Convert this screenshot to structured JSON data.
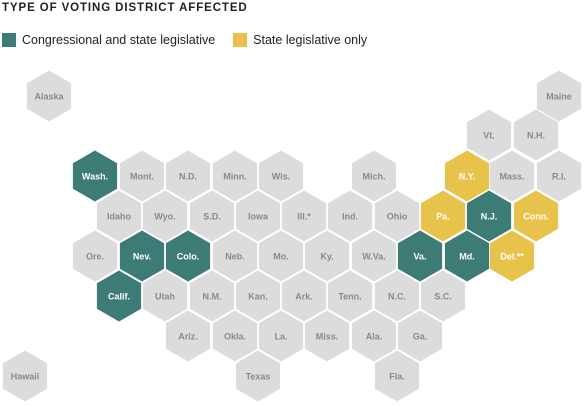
{
  "title": "TYPE OF VOTING DISTRICT AFFECTED",
  "legend": {
    "items": [
      {
        "label": "Congressional and state legislative",
        "color": "#3d7c76"
      },
      {
        "label": "State legislative only",
        "color": "#e8c34c"
      }
    ]
  },
  "colors": {
    "none": "#dcdcdc",
    "congressional": "#3d7c76",
    "legislative": "#e8c34c",
    "label_dark": "#8a8a8a",
    "label_light": "#ffffff"
  },
  "states": [
    {
      "abbr": "Alaska",
      "status": "none"
    },
    {
      "abbr": "Maine",
      "status": "none"
    },
    {
      "abbr": "Vt.",
      "status": "none"
    },
    {
      "abbr": "N.H.",
      "status": "none"
    },
    {
      "abbr": "Wash.",
      "status": "congressional"
    },
    {
      "abbr": "Mont.",
      "status": "none"
    },
    {
      "abbr": "N.D.",
      "status": "none"
    },
    {
      "abbr": "Minn.",
      "status": "none"
    },
    {
      "abbr": "Wis.",
      "status": "none"
    },
    {
      "abbr": "Mich.",
      "status": "none"
    },
    {
      "abbr": "N.Y.",
      "status": "legislative"
    },
    {
      "abbr": "Mass.",
      "status": "none"
    },
    {
      "abbr": "R.I.",
      "status": "none"
    },
    {
      "abbr": "Idaho",
      "status": "none"
    },
    {
      "abbr": "Wyo.",
      "status": "none"
    },
    {
      "abbr": "S.D.",
      "status": "none"
    },
    {
      "abbr": "Iowa",
      "status": "none"
    },
    {
      "abbr": "Ill.*",
      "status": "none"
    },
    {
      "abbr": "Ind.",
      "status": "none"
    },
    {
      "abbr": "Ohio",
      "status": "none"
    },
    {
      "abbr": "Pa.",
      "status": "legislative"
    },
    {
      "abbr": "N.J.",
      "status": "congressional"
    },
    {
      "abbr": "Conn.",
      "status": "legislative"
    },
    {
      "abbr": "Ore.",
      "status": "none"
    },
    {
      "abbr": "Nev.",
      "status": "congressional"
    },
    {
      "abbr": "Colo.",
      "status": "congressional"
    },
    {
      "abbr": "Neb.",
      "status": "none"
    },
    {
      "abbr": "Mo.",
      "status": "none"
    },
    {
      "abbr": "Ky.",
      "status": "none"
    },
    {
      "abbr": "W.Va.",
      "status": "none"
    },
    {
      "abbr": "Va.",
      "status": "congressional"
    },
    {
      "abbr": "Md.",
      "status": "congressional"
    },
    {
      "abbr": "Del.**",
      "status": "legislative"
    },
    {
      "abbr": "Calif.",
      "status": "congressional"
    },
    {
      "abbr": "Utah",
      "status": "none"
    },
    {
      "abbr": "N.M.",
      "status": "none"
    },
    {
      "abbr": "Kan.",
      "status": "none"
    },
    {
      "abbr": "Ark.",
      "status": "none"
    },
    {
      "abbr": "Tenn.",
      "status": "none"
    },
    {
      "abbr": "N.C.",
      "status": "none"
    },
    {
      "abbr": "S.C.",
      "status": "none"
    },
    {
      "abbr": "Ariz.",
      "status": "none"
    },
    {
      "abbr": "Okla.",
      "status": "none"
    },
    {
      "abbr": "La.",
      "status": "none"
    },
    {
      "abbr": "Miss.",
      "status": "none"
    },
    {
      "abbr": "Ala.",
      "status": "none"
    },
    {
      "abbr": "Ga.",
      "status": "none"
    },
    {
      "abbr": "Hawaii",
      "status": "none"
    },
    {
      "abbr": "Texas",
      "status": "none"
    },
    {
      "abbr": "Fla.",
      "status": "none"
    }
  ]
}
